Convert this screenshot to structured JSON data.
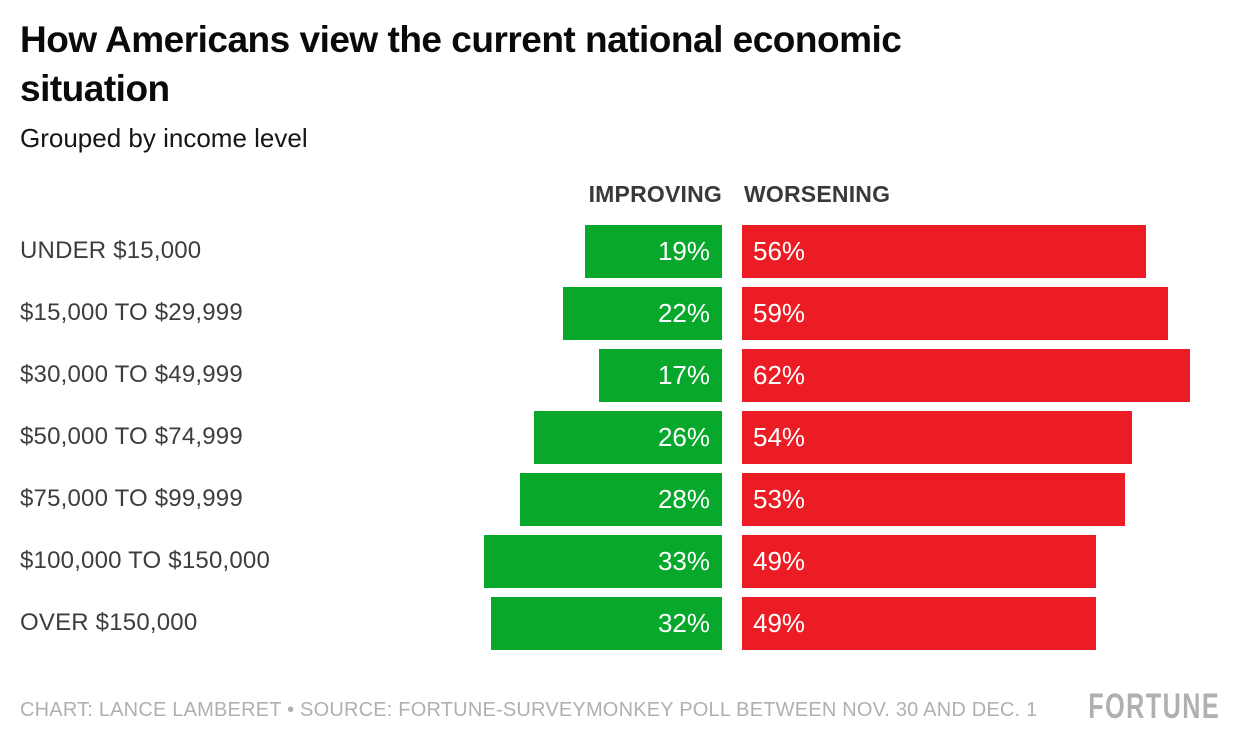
{
  "title_lines": [
    "How Americans view the current national economic",
    "situation"
  ],
  "subtitle": "Grouped by income level",
  "columns": {
    "improving": "IMPROVING",
    "worsening": "WORSENING"
  },
  "colors": {
    "improving_green": "#07a82c",
    "worsening_red": "#ec1c24",
    "title_black": "#0a0a0a",
    "label_gray": "#3d3d3d",
    "footer_gray": "#b2b0af"
  },
  "chart_data": {
    "type": "bar",
    "orientation": "diverging-horizontal",
    "title": "How Americans view the current national economic situation",
    "subtitle": "Grouped by income level",
    "categories": [
      "UNDER $15,000",
      "$15,000 TO $29,999",
      "$30,000 TO $49,999",
      "$50,000 TO $74,999",
      "$75,000 TO $99,999",
      "$100,000 TO $150,000",
      "OVER $150,000"
    ],
    "series": [
      {
        "name": "IMPROVING",
        "values": [
          19,
          22,
          17,
          26,
          28,
          33,
          32
        ]
      },
      {
        "name": "WORSENING",
        "values": [
          56,
          59,
          62,
          54,
          53,
          49,
          49
        ]
      }
    ],
    "value_suffix": "%",
    "value_labels_shown": true,
    "axis_shown": false,
    "grid": false,
    "legend_position": "top-as-column-headers"
  },
  "footer": {
    "credit": "CHART: LANCE LAMBERET • SOURCE: FORTUNE-SURVEYMONKEY POLL BETWEEN NOV. 30 AND DEC. 1",
    "logo": "FORTUNE"
  }
}
